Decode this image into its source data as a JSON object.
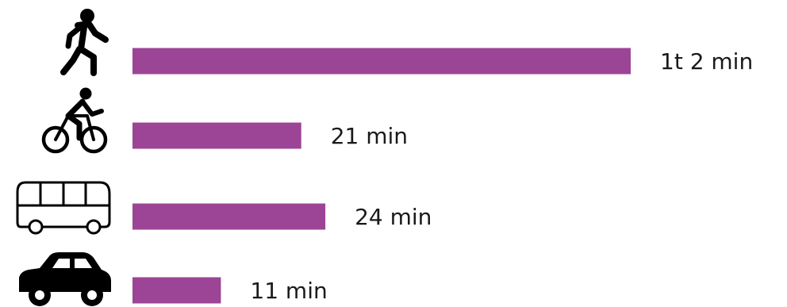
{
  "chart_data": {
    "type": "bar",
    "orientation": "horizontal",
    "categories": [
      "walking",
      "cycling",
      "bus",
      "car"
    ],
    "values_minutes": [
      62,
      21,
      24,
      11
    ],
    "labels": [
      "1t 2 min",
      "21 min",
      "24 min",
      "11 min"
    ],
    "icons": [
      "walking-person-icon",
      "bicycle-icon",
      "bus-icon",
      "car-icon"
    ],
    "bar_color": "#9c4596",
    "text_color": "#1a1a1a",
    "icon_color": "#000000",
    "xlim": [
      0,
      62
    ],
    "grid": false,
    "legend": "none"
  }
}
